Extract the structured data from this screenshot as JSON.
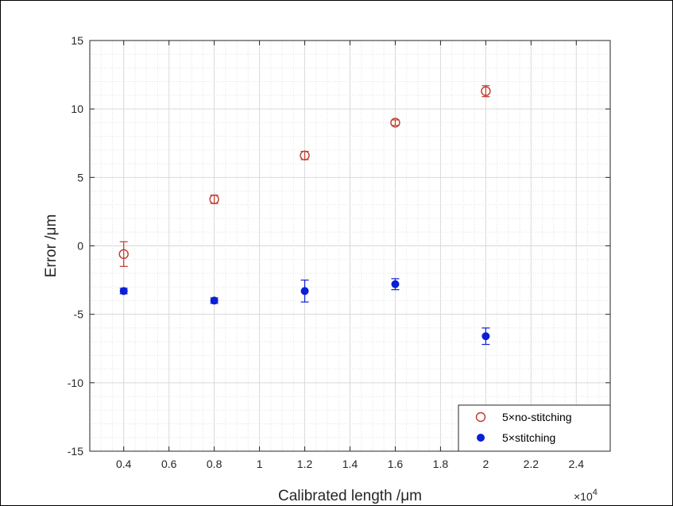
{
  "chart_data": {
    "type": "scatter",
    "xlabel": "Calibrated length /μm",
    "ylabel": "Error /μm",
    "x_multiplier_label": "×10",
    "x_multiplier_exponent": "4",
    "xlim": [
      0.25,
      2.55
    ],
    "ylim": [
      -15,
      15
    ],
    "xticks": [
      "0.4",
      "0.6",
      "0.8",
      "1",
      "1.2",
      "1.4",
      "1.6",
      "1.8",
      "2",
      "2.2",
      "2.4"
    ],
    "xtick_values": [
      0.4,
      0.6,
      0.8,
      1.0,
      1.2,
      1.4,
      1.6,
      1.8,
      2.0,
      2.2,
      2.4
    ],
    "yticks": [
      "15",
      "10",
      "5",
      "0",
      "-5",
      "-10",
      "-15"
    ],
    "ytick_values": [
      15,
      10,
      5,
      0,
      -5,
      -10,
      -15
    ],
    "grid": "major and minor",
    "legend_position": "bottom-right",
    "series": [
      {
        "name": "5×no-stitching",
        "marker": "open-circle",
        "color": "#c0392b",
        "x": [
          0.4,
          0.8,
          1.2,
          1.6,
          2.0
        ],
        "y": [
          -0.6,
          3.4,
          6.6,
          9.0,
          11.3
        ],
        "err": [
          0.9,
          0.3,
          0.3,
          0.2,
          0.4
        ]
      },
      {
        "name": "5×stitching",
        "marker": "filled-circle",
        "color": "#0a1fd6",
        "x": [
          0.4,
          0.8,
          1.2,
          1.6,
          2.0
        ],
        "y": [
          -3.3,
          -4.0,
          -3.3,
          -2.8,
          -6.6
        ],
        "err": [
          0.2,
          0.2,
          0.8,
          0.4,
          0.6
        ]
      }
    ]
  }
}
